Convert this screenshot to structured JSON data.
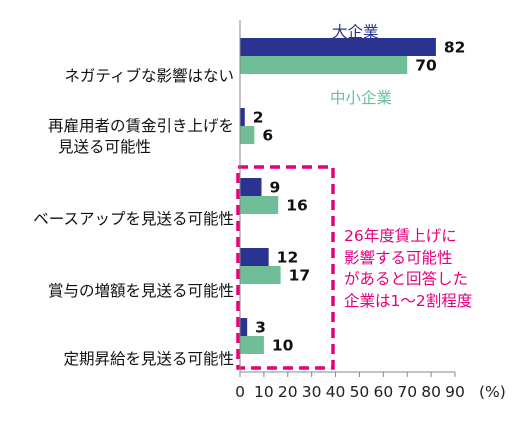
{
  "chart_data": {
    "type": "bar",
    "orientation": "horizontal",
    "categories": [
      "ネガティブな影響はない",
      "再雇用者の賃金引き上げを見送る可能性",
      "ベースアップを見送る可能性",
      "賞与の増額を見送る可能性",
      "定期昇給を見送る可能性"
    ],
    "category_lines": [
      [
        "ネガティブな影響はない"
      ],
      [
        "再雇用者の賃金引き上げを",
        "見送る可能性"
      ],
      [
        "ベースアップを見送る可能性"
      ],
      [
        "賞与の増額を見送る可能性"
      ],
      [
        "定期昇給を見送る可能性"
      ]
    ],
    "series": [
      {
        "name": "大企業",
        "values": [
          82,
          2,
          9,
          12,
          3
        ],
        "color": "#2b3390"
      },
      {
        "name": "中小企業",
        "values": [
          70,
          6,
          16,
          17,
          10
        ],
        "color": "#6fbe98"
      }
    ],
    "xlim": [
      0,
      90
    ],
    "xticks": [
      0,
      10,
      20,
      30,
      40,
      50,
      60,
      70,
      80,
      90
    ],
    "unit": "(%)",
    "grid": false,
    "annotation": {
      "lines": [
        "26年度賃上げに",
        "影響する可能性",
        "があると回答した",
        "企業は1～2割程度"
      ],
      "color": "#e4007f"
    }
  }
}
